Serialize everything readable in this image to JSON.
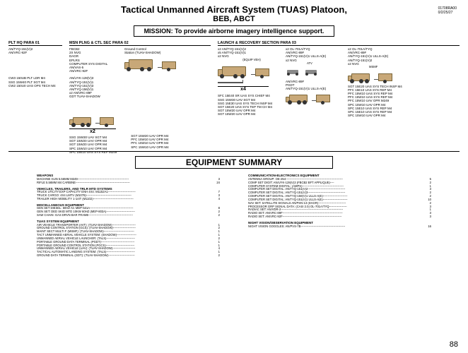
{
  "header": {
    "title": "Tactical Unmanned Aircraft System (TUAS) Platoon,",
    "subtitle": "BEB, ABCT",
    "docnum1": "01708RA00",
    "docnum2": "0/2/25/27",
    "mission": "MISSION: To provide airborne imagery  intelligence support."
  },
  "sections": {
    "plt_hq": "PLT HQ    PARA 01",
    "msn": "MSN PLNG & CTL SEC    PARA 02",
    "launch": "LAUNCH & RECOVERY SECTION    PARA 03"
  },
  "plt_hq_items": [
    "AN/TYQ-151(V)2",
    "AN/VRC-92F",
    "",
    "",
    "",
    "",
    "",
    "",
    "CW3 150UB PLT LDR M4",
    "SSG 15W40 PLT SGT M4",
    "CW2 150U0 UAS OPS TECH M4"
  ],
  "msn_left": [
    "FBCB2",
    "2X NVG",
    "DAGR",
    "EPLRS",
    "COMPUTER SYS DIGITAL",
    "AN/VAS-5",
    "AN/VRC-92F",
    "",
    "AN/UYK-128(V)3",
    "AN/TYQ-151(V)1",
    "AN/TYQ-151(V)3",
    "AN/TYQ-156(V)1",
    "x2 AN/VRC-89F",
    "GDT TUAV-SHADOW"
  ],
  "msn_right": [
    "Ground Control",
    "Station (TUAV-SHADOW)"
  ],
  "msn_mult": "x2",
  "msn_roster_l": [
    "SSG 15W30 UAV SGT M4",
    "SGT 15W20 UAV OPR M4",
    "SGT 15W20 UAV OPR M4",
    "SPC 15W10 UAV OPR M4",
    "SPC 15E10 UAS SYS REP M249"
  ],
  "msn_roster_r": [
    "SGT 15W20 UAV OPR M4",
    "PFC 15W10 UAV OPR M4",
    "PFC 15W10 UAV OPR M4",
    "SPC 15W10 UAV OPR M4"
  ],
  "launch1": [
    "x2 AN/TYQ-151(V)2",
    "x5 AN/TYQ-151(V)1",
    "x2 NVG"
  ],
  "launch1_label": "(EQUIP VEH)",
  "launch_mult": "x4",
  "launch1_roster": [
    "SFC 15E40 SR UAS SYS CHIEF M4",
    "SSG 15W30 UAV SGT M4",
    "SSG 15E30 UAS SYS TECH INSP M4",
    "SGT 15E20 UAS SYS TEP TM CH M4",
    "SGT 15W20 UAV OPR M4",
    "SGT 15W20 UAV OPR M4"
  ],
  "launch2": [
    "x2 OL-701A/TYQ",
    "AN/VRC-89F",
    "AN/TYQ-151(V)1 ULLS-A(E)",
    "x2 NVG"
  ],
  "launch2_label": "ATV",
  "launch2_mid": [
    "AN/VRC-89F",
    "PGDT",
    "AN/TYQ-151(V)1 ULLS-A(E)"
  ],
  "launch3": [
    "x2 OL-701A/TYQ",
    "AN/VRC-89F",
    "AN/TYQ-151(V)1 ULLS-A(E)",
    "AN/TYQ-151(V)2",
    "x2 NVG"
  ],
  "launch3_label": "MSMF",
  "launch3_roster": [
    "SGT 15E20 UAS SYS TECH INSP M4",
    "PFC 15E10 UAS SYS REP M4",
    "PFC 15W10 UAS SYS REP M4",
    "PFC 15W10 UAS SYS REP M4",
    "PFC 15W10 UAV OPR M249",
    "SPC 15W10 UAV OPR M4",
    "SPC 15E10 UAS SYS REP M4",
    "SPC 15E10 UAS SYS REP M4",
    "SPC 15W10 UAV OPR M4"
  ],
  "eqsum_title": "EQUIPMENT SUMMARY",
  "eq_left": [
    {
      "cat": "WEAPONS",
      "rows": [
        {
          "l": "MACHINE GUN 5.56MM M249----------------------------------------------------",
          "q": "3"
        },
        {
          "l": "RIFLE 5.56MM M4 CARBINE-------------------------------------------------------",
          "q": "24"
        }
      ]
    },
    {
      "cat": "VEHICLES, TRAILERS, AND TRLR MTD SYSTEMS",
      "rows": [
        {
          "l": "TRUCK UTILITY:EXP CAPACITY ENH 4X4: M1152A1----------------------------",
          "q": "7"
        },
        {
          "l": "TRUCK CARGO:  4X4 LMTV (M1078)----------------------------------------------",
          "q": "3"
        },
        {
          "l": "TRAILER HIGH MOBILITY 1-1/4T (M1102)-----------------------------------------",
          "q": "4"
        }
      ]
    },
    {
      "cat": "MISCELLANEOUS  EQUIPMENT",
      "rows": [
        {
          "l": "GEN SET DIESEL: 60HZ AC MEP-531A--------------------------------------------",
          "q": "8"
        },
        {
          "l": "GEN SET: DED SKID MTD 10KW 60HZ (MEP-803A)-----------------------------",
          "q": "2"
        },
        {
          "l": "SAW CHAIN:  GAS DRVN BAR FRAME---------------------------------------------",
          "q": "2"
        }
      ]
    },
    {
      "cat": "TUAS SYSTEM EQUIPMENT",
      "rows": [
        {
          "l": "AIR VEHICLE TRANSPORTER  (AVT): (TUAV-SHADOW)------------------------",
          "q": "1"
        },
        {
          "l": "GROUND CONTROL STATION (GCS): (TUAV-SHADOW)-----------------------",
          "q": "2"
        },
        {
          "l": "MAINT SECT MULTI F (MSMF): (TUAV-SHADOW)-------------------------------",
          "q": "1"
        },
        {
          "l": "TACT UNMANNED AERIAL VEHICLE SYSTEM: (SHADOW)--------------------",
          "q": "1"
        },
        {
          "l": "UNMANNED AERIAL VEHICLE LAUNCHER: (TALS)-----------------------------",
          "q": "2"
        },
        {
          "l": "PORTABLE GROUND DATA TERMINAL (PGDT)----------------------------------",
          "q": "1"
        },
        {
          "l": "PORTABLE GROUND CONTROL STATION (PGCS)-----------------------------",
          "q": "1"
        },
        {
          "l": "UNMANNED AERIAL VEHICLE (UAV): (TUAV-SHADOW)-----------------------",
          "q": "4"
        },
        {
          "l": "TACTICAL AUTOMATIC LANDING SYSTEM: (TALS)-----------------------------",
          "q": "1"
        },
        {
          "l": "GROUND DATA TERMINAL (GDT): (TUAV-SHADOW)---------------------------",
          "q": "2"
        }
      ]
    }
  ],
  "eq_right": [
    {
      "cat": "COMMUNICATION-ELECTRONICS EQUIPMENT",
      "rows": [
        {
          "l": "ANTENNA GROUP: OE-254----------------------------------------------------------",
          "q": "5"
        },
        {
          "l": "COMP SET DIGIT: AN/UYK-128(V)3 (FBCB2 BFT APPLIQUE)----",
          "q": "2"
        },
        {
          "l": "COMPUTER SYSTEM DIGITAL:  (AMPS)------------------------------------------",
          "q": "1"
        },
        {
          "l": "COMPUTER SET DIGITAL: AN/TYQ-151(V)2--------------------------------------",
          "q": "3"
        },
        {
          "l": "COMPUTER SET DIGITAL: AN/TYQ-151(V)3--------------------------------------",
          "q": "2"
        },
        {
          "l": "COMPUTER SET DIGITAL: AN/TYQ-150(V)1 ULLS-A(E)-------------------------",
          "q": "2"
        },
        {
          "l": "COMPUTER SET DIGITAL: AN/TYQ-151(V)1 ULLS-A(E)-------------------------",
          "q": "10"
        },
        {
          "l": "NAV SET: SATELLITE SIGNALS AN/PSN-13 (DAGR)----------------------------",
          "q": "2"
        },
        {
          "l": "PROCESSOR GRP SIGNAL DATA: (CASI 2.0) OL-701A/TYQ------------------",
          "q": "3"
        },
        {
          "l": "RADIAC SET: AN/VDR-2---------------------------------------------------------------",
          "q": "1"
        },
        {
          "l": "RADIO SET: AN/VRC-89F-------------------------------------------------------------",
          "q": "3"
        },
        {
          "l": "RADIO SET:  AN/VRC-92F------------------------------------------------------------",
          "q": "3"
        }
      ]
    },
    {
      "cat": "NIGHT VISION/OBSERVATION EQUIPMENT",
      "rows": [
        {
          "l": "NIGHT VISION GOGGLES:  AN/PVS-7B---------------------------------------------",
          "q": "16"
        }
      ]
    }
  ],
  "page_number": "88"
}
